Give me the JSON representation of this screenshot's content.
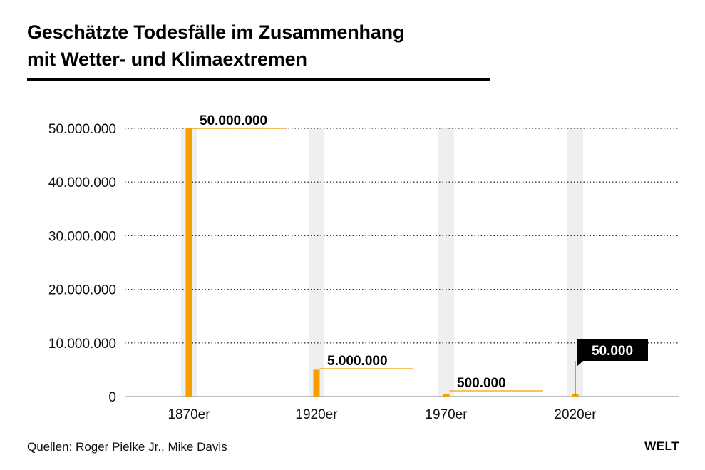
{
  "header": {
    "title_line1": "Geschätzte Todesfälle im Zusammenhang",
    "title_line2": "mit Wetter- und Klimaextremen"
  },
  "footer": {
    "source": "Quellen: Roger Pielke Jr., Mike Davis",
    "logo": "WELT"
  },
  "colors": {
    "bar": "#f5a000",
    "band": "#efefef",
    "grid": "#333333",
    "label_box_dark": "#000000"
  },
  "chart_data": {
    "type": "bar",
    "title": "Geschätzte Todesfälle im Zusammenhang mit Wetter- und Klimaextremen",
    "categories": [
      "1870er",
      "1920er",
      "1970er",
      "2020er"
    ],
    "values": [
      50000000,
      5000000,
      500000,
      50000
    ],
    "data_labels": [
      "50.000.000",
      "5.000.000",
      "500.000",
      "50.000"
    ],
    "yticks": [
      0,
      10000000,
      20000000,
      30000000,
      40000000,
      50000000
    ],
    "ytick_labels": [
      "0",
      "10.000.000",
      "20.000.000",
      "30.000.000",
      "40.000.000",
      "50.000.000"
    ],
    "ylim": [
      0,
      50000000
    ],
    "xlabel": "",
    "ylabel": "",
    "grid": true,
    "legend": "none"
  }
}
